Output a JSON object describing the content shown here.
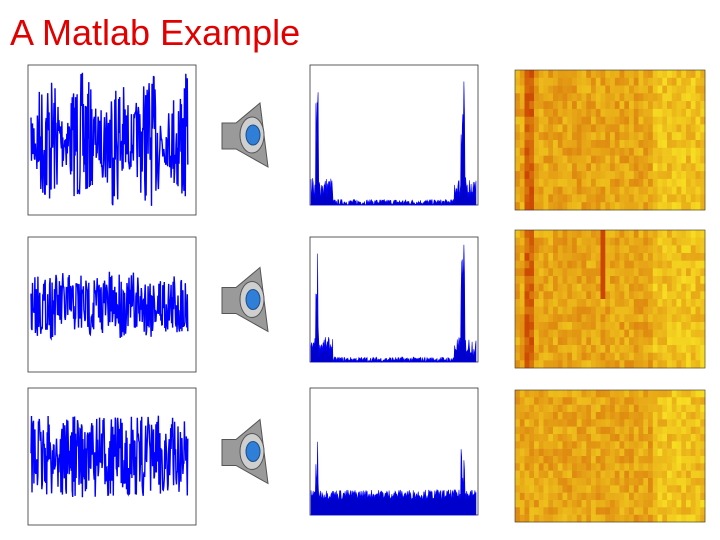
{
  "header": {
    "title": "A Matlab Example"
  }
}
